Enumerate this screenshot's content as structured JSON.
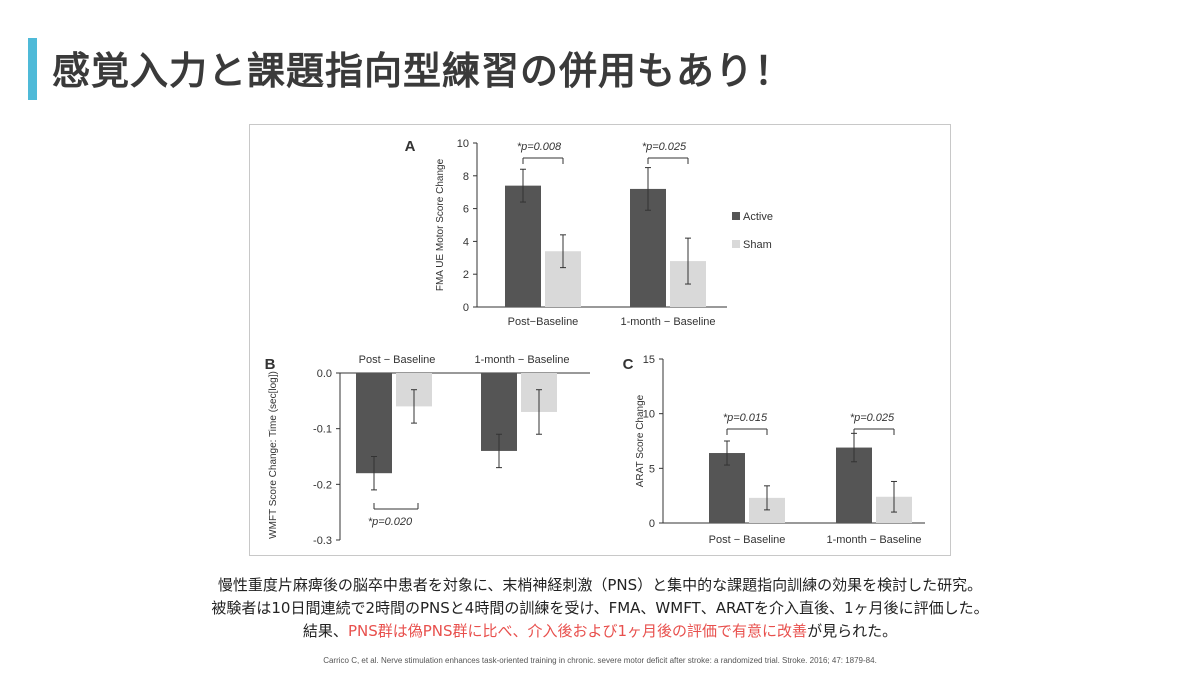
{
  "slide": {
    "title": "感覚入力と課題指向型練習の併用もあり！",
    "caption_line1": "慢性重度片麻痺後の脳卒中患者を対象に、末梢神経刺激（PNS）と集中的な課題指向訓練の効果を検討した研究。",
    "caption_line2": "被験者は10日間連続で2時間のPNSと4時間の訓練を受け、FMA、WMFT、ARATを介入直後、1ヶ月後に評価した。",
    "caption_line3_pre": "結果、",
    "caption_line3_highlight": "PNS群は偽PNS群に比べ、介入後および1ヶ月後の評価で有意に改善",
    "caption_line3_post": "が見られた。",
    "reference": "Carrico C, et al. Nerve stimulation enhances task-oriented training in chronic. severe motor deficit after stroke: a randomized trial. Stroke. 2016; 47: 1879-84.",
    "colors": {
      "accent_bar": "#4fbad8",
      "highlight_text": "#e8504d",
      "active": "#555555",
      "sham": "#d9d9d9"
    }
  },
  "chart_data": [
    {
      "panel": "A",
      "type": "bar",
      "ylabel": "FMA UE Motor Score Change",
      "categories": [
        "Post−Baseline",
        "1-month − Baseline"
      ],
      "series": [
        {
          "name": "Active",
          "values": [
            7.4,
            7.2
          ],
          "errors": [
            1.0,
            1.3
          ]
        },
        {
          "name": "Sham",
          "values": [
            3.4,
            2.8
          ],
          "errors": [
            1.0,
            1.4
          ]
        }
      ],
      "ylim": [
        0,
        10
      ],
      "yticks": [
        0,
        2,
        4,
        6,
        8,
        10
      ],
      "annotations": [
        "*p=0.008",
        "*p=0.025"
      ],
      "legend": "right"
    },
    {
      "panel": "B",
      "type": "bar",
      "ylabel": "WMFT Score Change: Time (sec[log])",
      "categories": [
        "Post − Baseline",
        "1-month − Baseline"
      ],
      "series": [
        {
          "name": "Active",
          "values": [
            -0.18,
            -0.14
          ],
          "errors": [
            0.03,
            0.03
          ]
        },
        {
          "name": "Sham",
          "values": [
            -0.06,
            -0.07
          ],
          "errors": [
            0.03,
            0.04
          ]
        }
      ],
      "ylim": [
        -0.3,
        0.0
      ],
      "yticks": [
        "0.0",
        "-0.1",
        "-0.2",
        "-0.3"
      ],
      "annotations": [
        "*p=0.020"
      ]
    },
    {
      "panel": "C",
      "type": "bar",
      "ylabel": "ARAT Score Change",
      "categories": [
        "Post − Baseline",
        "1-month − Baseline"
      ],
      "series": [
        {
          "name": "Active",
          "values": [
            6.4,
            6.9
          ],
          "errors": [
            1.1,
            1.3
          ]
        },
        {
          "name": "Sham",
          "values": [
            2.3,
            2.4
          ],
          "errors": [
            1.1,
            1.4
          ]
        }
      ],
      "ylim": [
        0,
        15
      ],
      "yticks": [
        0,
        5,
        10,
        15
      ],
      "annotations": [
        "*p=0.015",
        "*p=0.025"
      ]
    }
  ]
}
